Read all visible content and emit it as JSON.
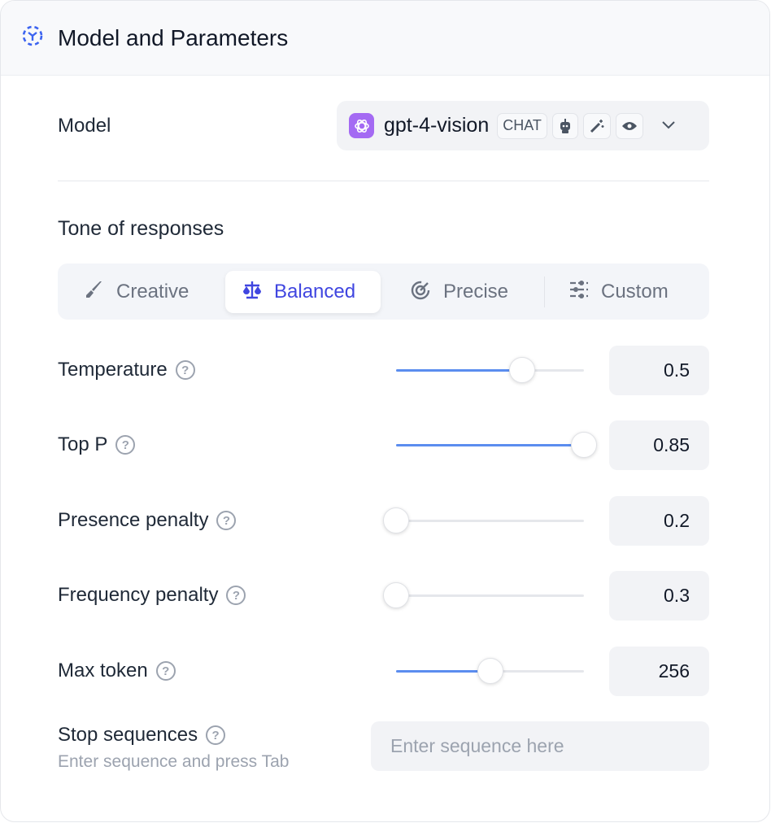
{
  "header": {
    "title": "Model and Parameters",
    "icon": "dashed-cube-icon",
    "accent": "#3b63f0"
  },
  "model": {
    "label": "Model",
    "name": "gpt-4-vision",
    "tag": "CHAT",
    "capabilities": [
      "robot-icon",
      "magic-wand-icon",
      "eye-icon"
    ],
    "logo_color": "#a46af3"
  },
  "tone": {
    "title": "Tone of responses",
    "tabs": [
      {
        "label": "Creative",
        "icon": "brush-icon",
        "active": false
      },
      {
        "label": "Balanced",
        "icon": "scale-icon",
        "active": true
      },
      {
        "label": "Precise",
        "icon": "target-icon",
        "active": false
      },
      {
        "label": "Custom",
        "icon": "sliders-icon",
        "active": false
      }
    ],
    "active_color": "#4046e0"
  },
  "params": [
    {
      "label": "Temperature",
      "value": "0.5",
      "slider_percent": 67
    },
    {
      "label": "Top P",
      "value": "0.85",
      "slider_percent": 100
    },
    {
      "label": "Presence penalty",
      "value": "0.2",
      "slider_percent": 0
    },
    {
      "label": "Frequency penalty",
      "value": "0.3",
      "slider_percent": 0
    },
    {
      "label": "Max token",
      "value": "256",
      "slider_percent": 50
    }
  ],
  "stop": {
    "label": "Stop sequences",
    "hint": "Enter sequence and press Tab",
    "placeholder": "Enter sequence here",
    "value": ""
  },
  "help_glyph": "?"
}
